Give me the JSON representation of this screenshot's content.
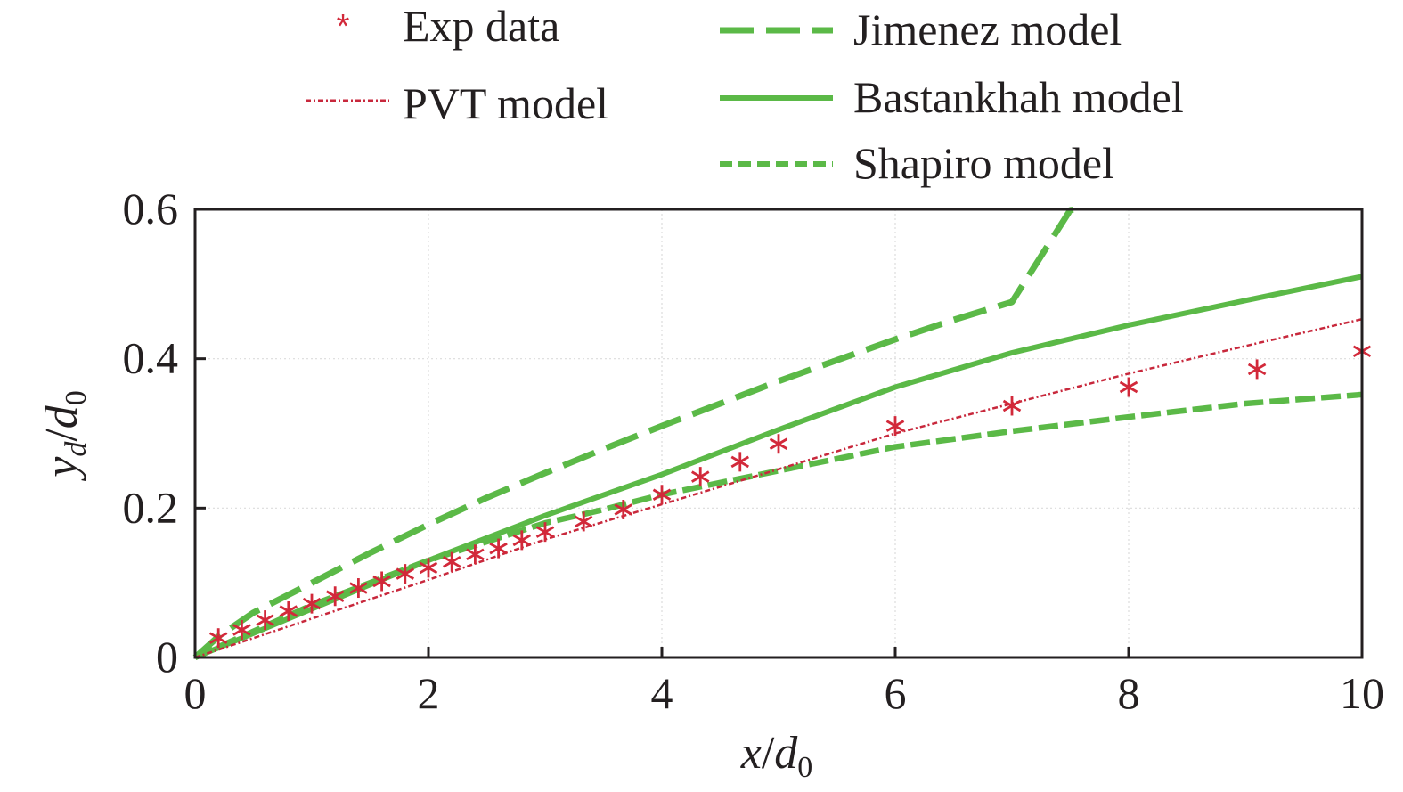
{
  "chart_data": {
    "type": "line",
    "title": "",
    "xlabel": {
      "main": "x",
      "sep": "/",
      "var": "d",
      "sub": "0"
    },
    "ylabel": {
      "main": "y",
      "sub": "d",
      "sep": "/",
      "var": "d",
      "sub2": "0"
    },
    "xlim": [
      0,
      10
    ],
    "ylim": [
      0,
      0.6
    ],
    "xticks": [
      0,
      2,
      4,
      6,
      8,
      10
    ],
    "xtick_labels": [
      "0",
      "2",
      "4",
      "6",
      "8",
      "10"
    ],
    "yticks": [
      0,
      0.2,
      0.4,
      0.6
    ],
    "ytick_labels": [
      "0",
      "0.2",
      "0.4",
      "0.6"
    ],
    "grid": true,
    "legend_placement": "top, above plot, two columns",
    "colors": {
      "exp": "#d2293a",
      "pvt": "#c8283c",
      "green": "#5bb947",
      "frame": "#231f20",
      "grid": "#dcdcdc"
    },
    "series": [
      {
        "name": "Exp data",
        "kind": "markers",
        "marker": "*",
        "x": [
          0.2,
          0.4,
          0.6,
          0.8,
          1.0,
          1.2,
          1.4,
          1.6,
          1.8,
          2.0,
          2.2,
          2.4,
          2.6,
          2.8,
          3.0,
          3.33,
          3.67,
          4.0,
          4.33,
          4.67,
          5.0,
          6.0,
          7.0,
          8.0,
          9.1,
          10.0
        ],
        "y": [
          0.026,
          0.037,
          0.05,
          0.062,
          0.072,
          0.082,
          0.093,
          0.102,
          0.112,
          0.12,
          0.128,
          0.138,
          0.146,
          0.157,
          0.168,
          0.182,
          0.198,
          0.218,
          0.242,
          0.262,
          0.286,
          0.31,
          0.337,
          0.362,
          0.386,
          0.41
        ]
      },
      {
        "name": "PVT model",
        "kind": "line",
        "style": "dashdot-fine",
        "x": [
          0,
          1,
          2,
          3,
          4,
          5,
          6,
          7,
          8,
          9,
          10
        ],
        "y": [
          0,
          0.052,
          0.104,
          0.158,
          0.205,
          0.252,
          0.3,
          0.34,
          0.38,
          0.417,
          0.453
        ]
      },
      {
        "name": "Jimenez model",
        "kind": "line",
        "style": "long-dash",
        "x": [
          0,
          0.2,
          0.5,
          1,
          1.5,
          2,
          2.5,
          3,
          3.5,
          4,
          4.5,
          5,
          5.5,
          6,
          6.5,
          7,
          7.5,
          7.56
        ],
        "y": [
          0,
          0.028,
          0.06,
          0.1,
          0.14,
          0.178,
          0.214,
          0.247,
          0.279,
          0.31,
          0.34,
          0.37,
          0.398,
          0.426,
          0.452,
          0.476,
          0.599,
          0.6
        ]
      },
      {
        "name": "Bastankhah model",
        "kind": "line",
        "style": "solid",
        "x": [
          0,
          1,
          2,
          3,
          4,
          5,
          6,
          7,
          8,
          9,
          10
        ],
        "y": [
          0,
          0.065,
          0.13,
          0.19,
          0.245,
          0.305,
          0.362,
          0.408,
          0.445,
          0.478,
          0.51
        ]
      },
      {
        "name": "Shapiro model",
        "kind": "line",
        "style": "short-dash",
        "x": [
          0,
          1,
          2,
          3,
          3.5,
          4,
          5,
          6,
          7,
          8,
          9,
          10
        ],
        "y": [
          0,
          0.07,
          0.13,
          0.18,
          0.198,
          0.218,
          0.25,
          0.282,
          0.303,
          0.322,
          0.34,
          0.352
        ]
      }
    ]
  }
}
